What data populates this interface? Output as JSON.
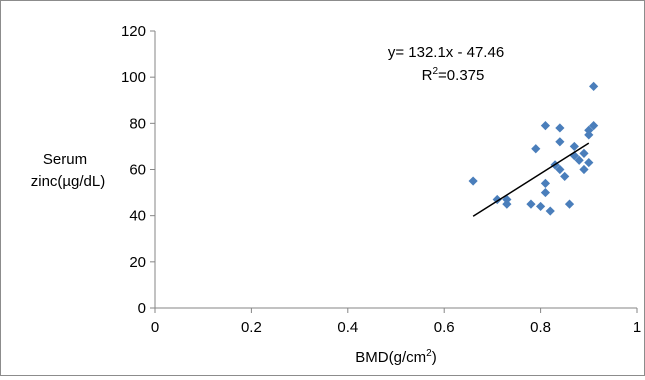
{
  "chart_data": {
    "type": "scatter",
    "title": "",
    "xlabel": "BMD(g/cm",
    "xlabel_sup": "2",
    "xlabel_end": ")",
    "ylabel_line1": "Serum",
    "ylabel_line2": "zinc(µg/dL)",
    "xlim": [
      0,
      1
    ],
    "ylim": [
      0,
      120
    ],
    "x_ticks": [
      0,
      0.2,
      0.4,
      0.6,
      0.8,
      1
    ],
    "x_tick_labels": [
      "0",
      "0.2",
      "0.4",
      "0.6",
      "0.8",
      "1"
    ],
    "y_ticks": [
      0,
      20,
      40,
      60,
      80,
      100,
      120
    ],
    "y_tick_labels": [
      "0",
      "20",
      "40",
      "60",
      "80",
      "100",
      "120"
    ],
    "grid": false,
    "marker_color": "#4a7ebb",
    "trendline_color": "#000000",
    "points": [
      {
        "x": 0.66,
        "y": 55
      },
      {
        "x": 0.71,
        "y": 47
      },
      {
        "x": 0.73,
        "y": 47
      },
      {
        "x": 0.73,
        "y": 45
      },
      {
        "x": 0.78,
        "y": 45
      },
      {
        "x": 0.79,
        "y": 69
      },
      {
        "x": 0.8,
        "y": 44
      },
      {
        "x": 0.81,
        "y": 79
      },
      {
        "x": 0.81,
        "y": 54
      },
      {
        "x": 0.81,
        "y": 50
      },
      {
        "x": 0.82,
        "y": 42
      },
      {
        "x": 0.83,
        "y": 62
      },
      {
        "x": 0.84,
        "y": 78
      },
      {
        "x": 0.84,
        "y": 72
      },
      {
        "x": 0.84,
        "y": 60
      },
      {
        "x": 0.85,
        "y": 57
      },
      {
        "x": 0.86,
        "y": 45
      },
      {
        "x": 0.87,
        "y": 70
      },
      {
        "x": 0.87,
        "y": 66
      },
      {
        "x": 0.88,
        "y": 64
      },
      {
        "x": 0.89,
        "y": 60
      },
      {
        "x": 0.89,
        "y": 67
      },
      {
        "x": 0.9,
        "y": 77
      },
      {
        "x": 0.9,
        "y": 63
      },
      {
        "x": 0.9,
        "y": 75
      },
      {
        "x": 0.91,
        "y": 79
      },
      {
        "x": 0.91,
        "y": 96
      }
    ],
    "trendline": {
      "x_start": 0.66,
      "x_end": 0.9,
      "slope": 132.1,
      "intercept": -47.46
    },
    "annotation_equation": "y= 132.1x - 47.46",
    "annotation_r2_prefix": "R",
    "annotation_r2_sup": "2",
    "annotation_r2_value": "=0.375"
  }
}
